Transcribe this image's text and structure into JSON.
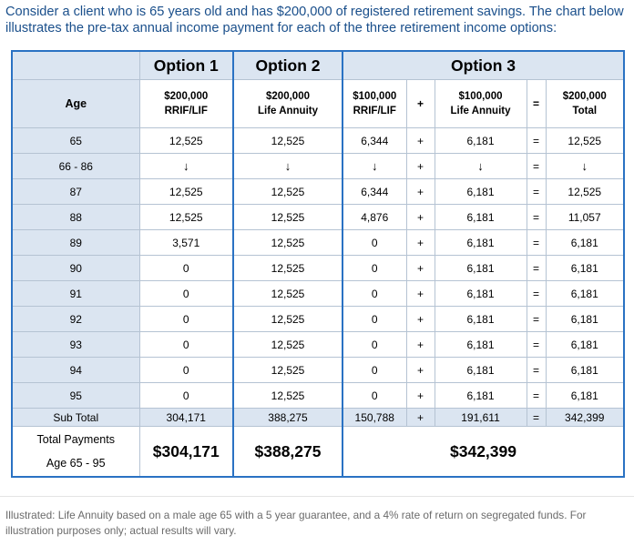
{
  "intro": "Consider a client who is 65 years old and has $200,000 of registered retirement savings. The chart below illustrates the pre-tax annual income payment for each of the three retirement income options:",
  "options": {
    "option1": "Option 1",
    "option2": "Option 2",
    "option3": "Option 3"
  },
  "subheaders": {
    "age": "Age",
    "opt1_line1": "$200,000",
    "opt1_line2": "RRIF/LIF",
    "opt2_line1": "$200,000",
    "opt2_line2": "Life Annuity",
    "opt3a_line1": "$100,000",
    "opt3a_line2": "RRIF/LIF",
    "opt3b_line1": "$100,000",
    "opt3b_line2": "Life Annuity",
    "opt3t_line1": "$200,000",
    "opt3t_line2": "Total",
    "plus": "+",
    "equals": "="
  },
  "rows": [
    {
      "age": "65",
      "o1": "12,525",
      "o2": "12,525",
      "o3a": "6,344",
      "plus": "+",
      "o3b": "6,181",
      "eq": "=",
      "o3t": "12,525"
    },
    {
      "age": "66 - 86",
      "o1": "↓",
      "o2": "↓",
      "o3a": "↓",
      "plus": "+",
      "o3b": "↓",
      "eq": "=",
      "o3t": "↓"
    },
    {
      "age": "87",
      "o1": "12,525",
      "o2": "12,525",
      "o3a": "6,344",
      "plus": "+",
      "o3b": "6,181",
      "eq": "=",
      "o3t": "12,525"
    },
    {
      "age": "88",
      "o1": "12,525",
      "o2": "12,525",
      "o3a": "4,876",
      "plus": "+",
      "o3b": "6,181",
      "eq": "=",
      "o3t": "11,057"
    },
    {
      "age": "89",
      "o1": "3,571",
      "o2": "12,525",
      "o3a": "0",
      "plus": "+",
      "o3b": "6,181",
      "eq": "=",
      "o3t": "6,181"
    },
    {
      "age": "90",
      "o1": "0",
      "o2": "12,525",
      "o3a": "0",
      "plus": "+",
      "o3b": "6,181",
      "eq": "=",
      "o3t": "6,181"
    },
    {
      "age": "91",
      "o1": "0",
      "o2": "12,525",
      "o3a": "0",
      "plus": "+",
      "o3b": "6,181",
      "eq": "=",
      "o3t": "6,181"
    },
    {
      "age": "92",
      "o1": "0",
      "o2": "12,525",
      "o3a": "0",
      "plus": "+",
      "o3b": "6,181",
      "eq": "=",
      "o3t": "6,181"
    },
    {
      "age": "93",
      "o1": "0",
      "o2": "12,525",
      "o3a": "0",
      "plus": "+",
      "o3b": "6,181",
      "eq": "=",
      "o3t": "6,181"
    },
    {
      "age": "94",
      "o1": "0",
      "o2": "12,525",
      "o3a": "0",
      "plus": "+",
      "o3b": "6,181",
      "eq": "=",
      "o3t": "6,181"
    },
    {
      "age": "95",
      "o1": "0",
      "o2": "12,525",
      "o3a": "0",
      "plus": "+",
      "o3b": "6,181",
      "eq": "=",
      "o3t": "6,181"
    }
  ],
  "subtotal": {
    "label": "Sub Total",
    "o1": "304,171",
    "o2": "388,275",
    "o3a": "150,788",
    "plus": "+",
    "o3b": "191,611",
    "eq": "=",
    "o3t": "342,399"
  },
  "total": {
    "label_line1": "Total Payments",
    "label_line2": "Age 65 - 95",
    "o1": "$304,171",
    "o2": "$388,275",
    "o3": "$342,399"
  },
  "footer": "Illustrated: Life Annuity based on a male age 65 with a 5 year guarantee, and a 4% rate of return on segregated funds. For illustration purposes only; actual results will vary."
}
